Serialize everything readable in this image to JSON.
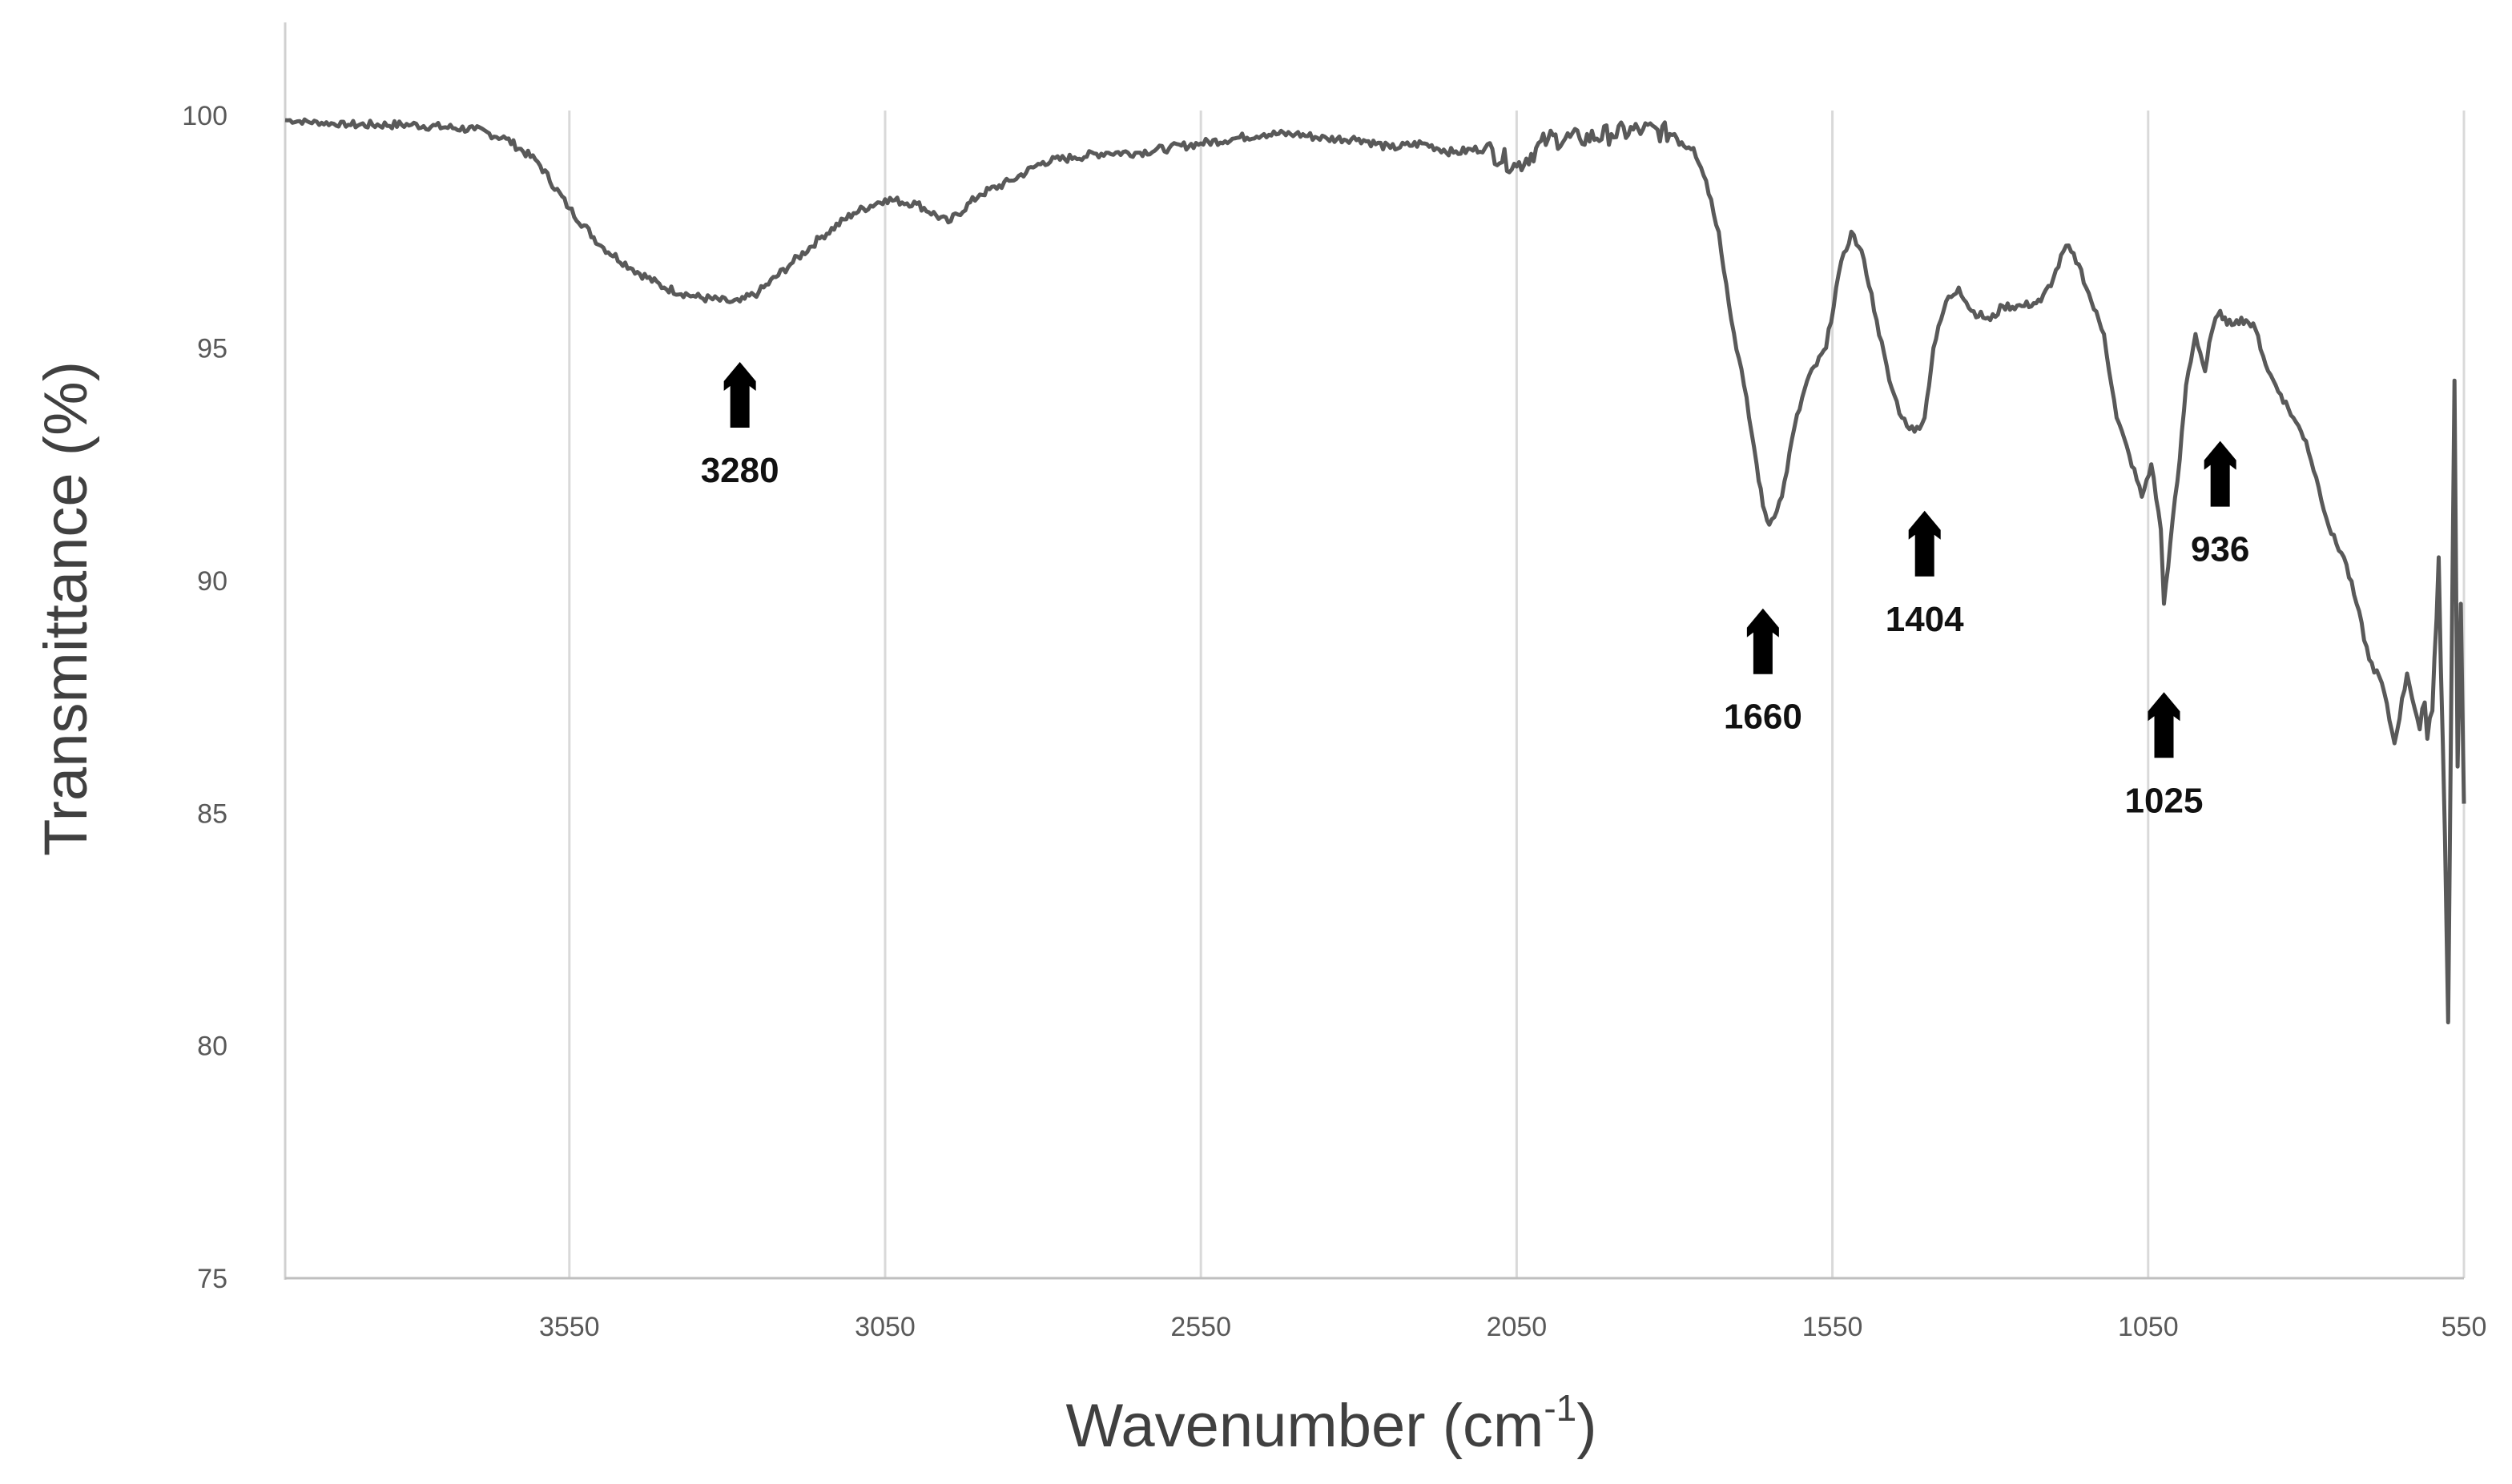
{
  "chart_data": {
    "type": "line",
    "title": "",
    "xlabel": "Wavenumber (cm",
    "xlabel_sup": "-1",
    "xlabel_close": ")",
    "ylabel": "Transmittance (%)",
    "xlim": [
      4000,
      550
    ],
    "ylim": [
      75,
      102
    ],
    "x_reversed": true,
    "x_ticks": [
      3550,
      3050,
      2550,
      2050,
      1550,
      1050,
      550
    ],
    "x_tick_labels": [
      "3550",
      "3050",
      "2550",
      "2050",
      "1550",
      "1050",
      "550"
    ],
    "y_ticks": [
      75,
      80,
      85,
      90,
      95,
      100
    ],
    "y_tick_labels": [
      "75",
      "80",
      "85",
      "90",
      "95",
      "100"
    ],
    "grid": "vertical",
    "line_color": "#595959",
    "series": [
      {
        "x": [
          4000,
          3900,
          3800,
          3700,
          3650,
          3600,
          3550,
          3500,
          3450,
          3400,
          3350,
          3300,
          3280,
          3250,
          3200,
          3150,
          3100,
          3050,
          3000,
          2950,
          2900,
          2850,
          2800,
          2750,
          2700,
          2650,
          2600,
          2550,
          2500,
          2450,
          2400,
          2350,
          2300,
          2250,
          2200,
          2150,
          2100,
          2050,
          2000,
          1950,
          1900,
          1850,
          1800,
          1770,
          1750,
          1730,
          1710,
          1690,
          1670,
          1660,
          1650,
          1630,
          1610,
          1590,
          1560,
          1540,
          1520,
          1500,
          1480,
          1460,
          1440,
          1420,
          1404,
          1390,
          1370,
          1350,
          1330,
          1300,
          1280,
          1250,
          1220,
          1200,
          1180,
          1160,
          1140,
          1120,
          1100,
          1080,
          1060,
          1045,
          1030,
          1025,
          1015,
          1000,
          990,
          975,
          960,
          950,
          940,
          936,
          925,
          910,
          895,
          880,
          860,
          840,
          820,
          800,
          780,
          760,
          740,
          720,
          700,
          680,
          660,
          640,
          620,
          600,
          590,
          580,
          575,
          570,
          565,
          560,
          555,
          550
        ],
        "y": [
          99.9,
          99.8,
          99.8,
          99.7,
          99.5,
          99,
          98,
          97.2,
          96.7,
          96.3,
          96.1,
          96,
          96,
          96.2,
          96.8,
          97.4,
          97.9,
          98.2,
          98.1,
          97.7,
          98.3,
          98.6,
          99,
          99.1,
          99.2,
          99.2,
          99.3,
          99.4,
          99.5,
          99.6,
          99.6,
          99.5,
          99.5,
          99.3,
          99.4,
          99.2,
          99.3,
          98.9,
          99.5,
          99.5,
          99.6,
          99.7,
          99.6,
          99.3,
          98.6,
          97.5,
          95.6,
          94.2,
          92.5,
          91.6,
          91.2,
          91.8,
          93.3,
          94.3,
          95,
          96.6,
          97.5,
          96.9,
          95.6,
          94.3,
          93.5,
          93.2,
          93.5,
          95,
          96,
          96.3,
          95.8,
          95.6,
          95.9,
          95.9,
          96,
          96.5,
          97.2,
          96.8,
          96,
          95.3,
          93.5,
          92.7,
          91.8,
          92.5,
          91.1,
          89.5,
          90.8,
          92.6,
          94.2,
          95.3,
          94.5,
          95.3,
          95.7,
          95.8,
          95.5,
          95.6,
          95.6,
          95.4,
          94.5,
          94,
          93.5,
          93,
          92,
          91,
          90.5,
          89.5,
          88.3,
          87.8,
          86.5,
          88,
          86.8,
          87.2,
          90.5,
          84.5,
          80.5,
          87.5,
          94.3,
          86,
          89.5,
          85.2
        ],
        "name": ""
      }
    ],
    "annotations": [
      {
        "label": "3280",
        "x": 3280,
        "y": 94.7
      },
      {
        "label": "1660",
        "x": 1660,
        "y": 89.4
      },
      {
        "label": "1404",
        "x": 1404,
        "y": 91.5
      },
      {
        "label": "1025",
        "x": 1025,
        "y": 87.6
      },
      {
        "label": "936",
        "x": 936,
        "y": 93.0
      }
    ]
  }
}
